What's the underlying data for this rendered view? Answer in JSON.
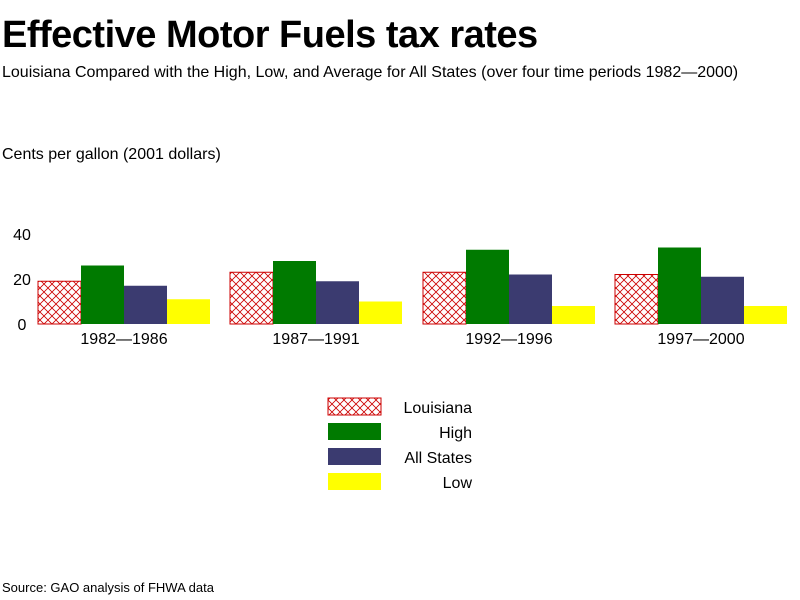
{
  "title": "Effective Motor Fuels tax rates",
  "subtitle": "Louisiana Compared with the High, Low, and Average for All States (over four time periods 1982—2000)",
  "units_label": "Cents per gallon (2001 dollars)",
  "source": "Source: GAO analysis of FHWA data",
  "colors": {
    "louisiana_hatch": "#cc0000",
    "high": "#007a00",
    "all_states": "#3b3b70",
    "low": "#ffff00"
  },
  "chart_data": {
    "type": "bar",
    "categories": [
      "1982—1986",
      "1987—1991",
      "1992—1996",
      "1997—2000"
    ],
    "series": [
      {
        "name": "Louisiana",
        "values": [
          19,
          23,
          23,
          22
        ],
        "color": "#cc0000",
        "pattern": "crosshatch"
      },
      {
        "name": "High",
        "values": [
          26,
          28,
          33,
          34
        ],
        "color": "#007a00"
      },
      {
        "name": "All States",
        "values": [
          17,
          19,
          22,
          21
        ],
        "color": "#3b3b70"
      },
      {
        "name": "Low",
        "values": [
          11,
          10,
          8,
          8
        ],
        "color": "#ffff00"
      }
    ],
    "yticks": [
      0,
      20,
      40
    ],
    "ylim": [
      0,
      40
    ],
    "grid": false,
    "legend_position": "bottom-center"
  }
}
